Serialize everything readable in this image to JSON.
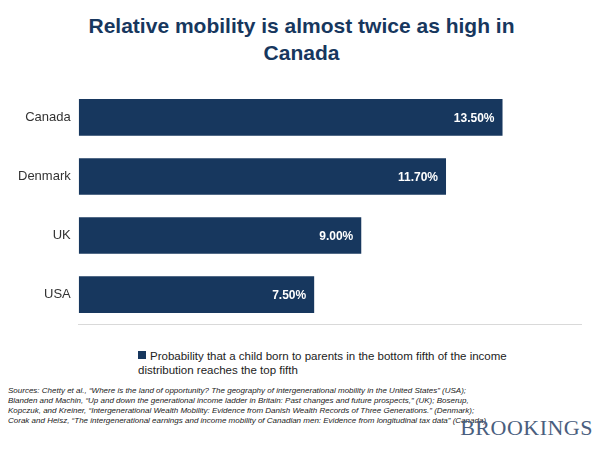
{
  "chart_data": {
    "type": "bar",
    "orientation": "horizontal",
    "title": "Relative mobility is almost twice as high in Canada",
    "categories": [
      "Canada",
      "Denmark",
      "UK",
      "USA"
    ],
    "series": [
      {
        "name": "Probability that a child born to parents in the bottom fifth of the income distribution reaches the top fifth",
        "color": "#17375E",
        "values": [
          13.5,
          11.7,
          9.0,
          7.5
        ],
        "value_labels": [
          "13.50%",
          "11.70%",
          "9.00%",
          "7.50%"
        ]
      }
    ],
    "xlim": [
      0,
      16
    ],
    "xticks": [],
    "grid": false,
    "legend": "bottom",
    "data_labels": true,
    "tick_labels": "y",
    "source": "Sources: Chetty et al., “Where  is the land of opportunity? The geography of intergenerational mobility  in the United States” (USA); Blanden and Machin, “Up and down the generational income ladder in Britain: Past changes and future prospects,” (UK); Boserup, Kopczuk, and Kreiner, “Intergenerational Wealth Mobility: Evidence from Danish Wealth Records of Three Generations.” (Denmark);  Corak and Heisz,  “The intergenerational earnings and income mobility  of Canadian men: Evidence from longitudinal tax data” (Canada)",
    "logo": "BROOKINGS"
  }
}
